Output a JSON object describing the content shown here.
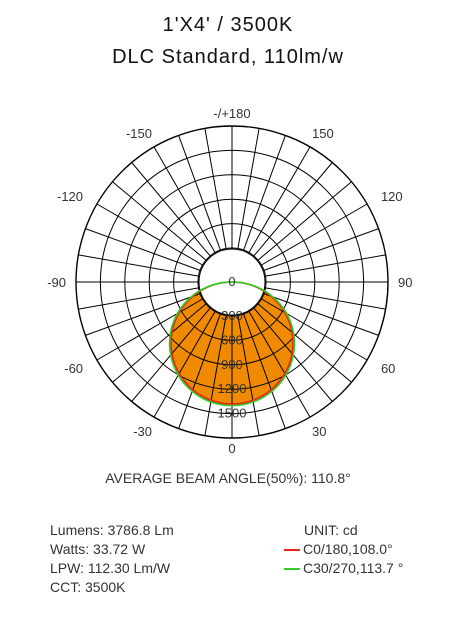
{
  "header": {
    "title": "1'X4' / 3500K",
    "subtitle": "DLC Standard, 110lm/w"
  },
  "chart_data": {
    "type": "polar",
    "angle_labels": [
      {
        "angle": 180,
        "text": "-/+180"
      },
      {
        "angle": -150,
        "text": "-150"
      },
      {
        "angle": 150,
        "text": "150"
      },
      {
        "angle": -120,
        "text": "-120"
      },
      {
        "angle": 120,
        "text": "120"
      },
      {
        "angle": -90,
        "text": "-90"
      },
      {
        "angle": 90,
        "text": "90"
      },
      {
        "angle": -60,
        "text": "-60"
      },
      {
        "angle": 60,
        "text": "60"
      },
      {
        "angle": -30,
        "text": "-30"
      },
      {
        "angle": 30,
        "text": "30"
      },
      {
        "angle": 0,
        "text": "0"
      }
    ],
    "radial_labels": [
      "0",
      "300",
      "600",
      "900",
      "1200",
      "1500"
    ],
    "radial_values": [
      0,
      300,
      600,
      900,
      1200,
      1500
    ],
    "rmax": 1500,
    "radial_spokes_deg": 10,
    "series": [
      {
        "name": "C0/180,108.0°",
        "color": "#e8241c",
        "peak": 1500,
        "beam_angle": 108.0
      },
      {
        "name": "C30/270,113.7 °",
        "color": "#33cc2a",
        "peak": 1520,
        "beam_angle": 113.7
      }
    ],
    "fill_color": "#f08a00"
  },
  "beam": {
    "text": "AVERAGE BEAM ANGLE(50%): 110.8°"
  },
  "stats": {
    "lumens": "Lumens: 3786.8 Lm",
    "watts": "Watts: 33.72 W",
    "lpw": "LPW: 112.30 Lm/W",
    "cct": "CCT: 3500K"
  },
  "legend": {
    "unit": "UNIT: cd",
    "items": [
      {
        "label": "C0/180,108.0°",
        "color": "#e8241c"
      },
      {
        "label": "C30/270,113.7 °",
        "color": "#33cc2a"
      }
    ]
  }
}
